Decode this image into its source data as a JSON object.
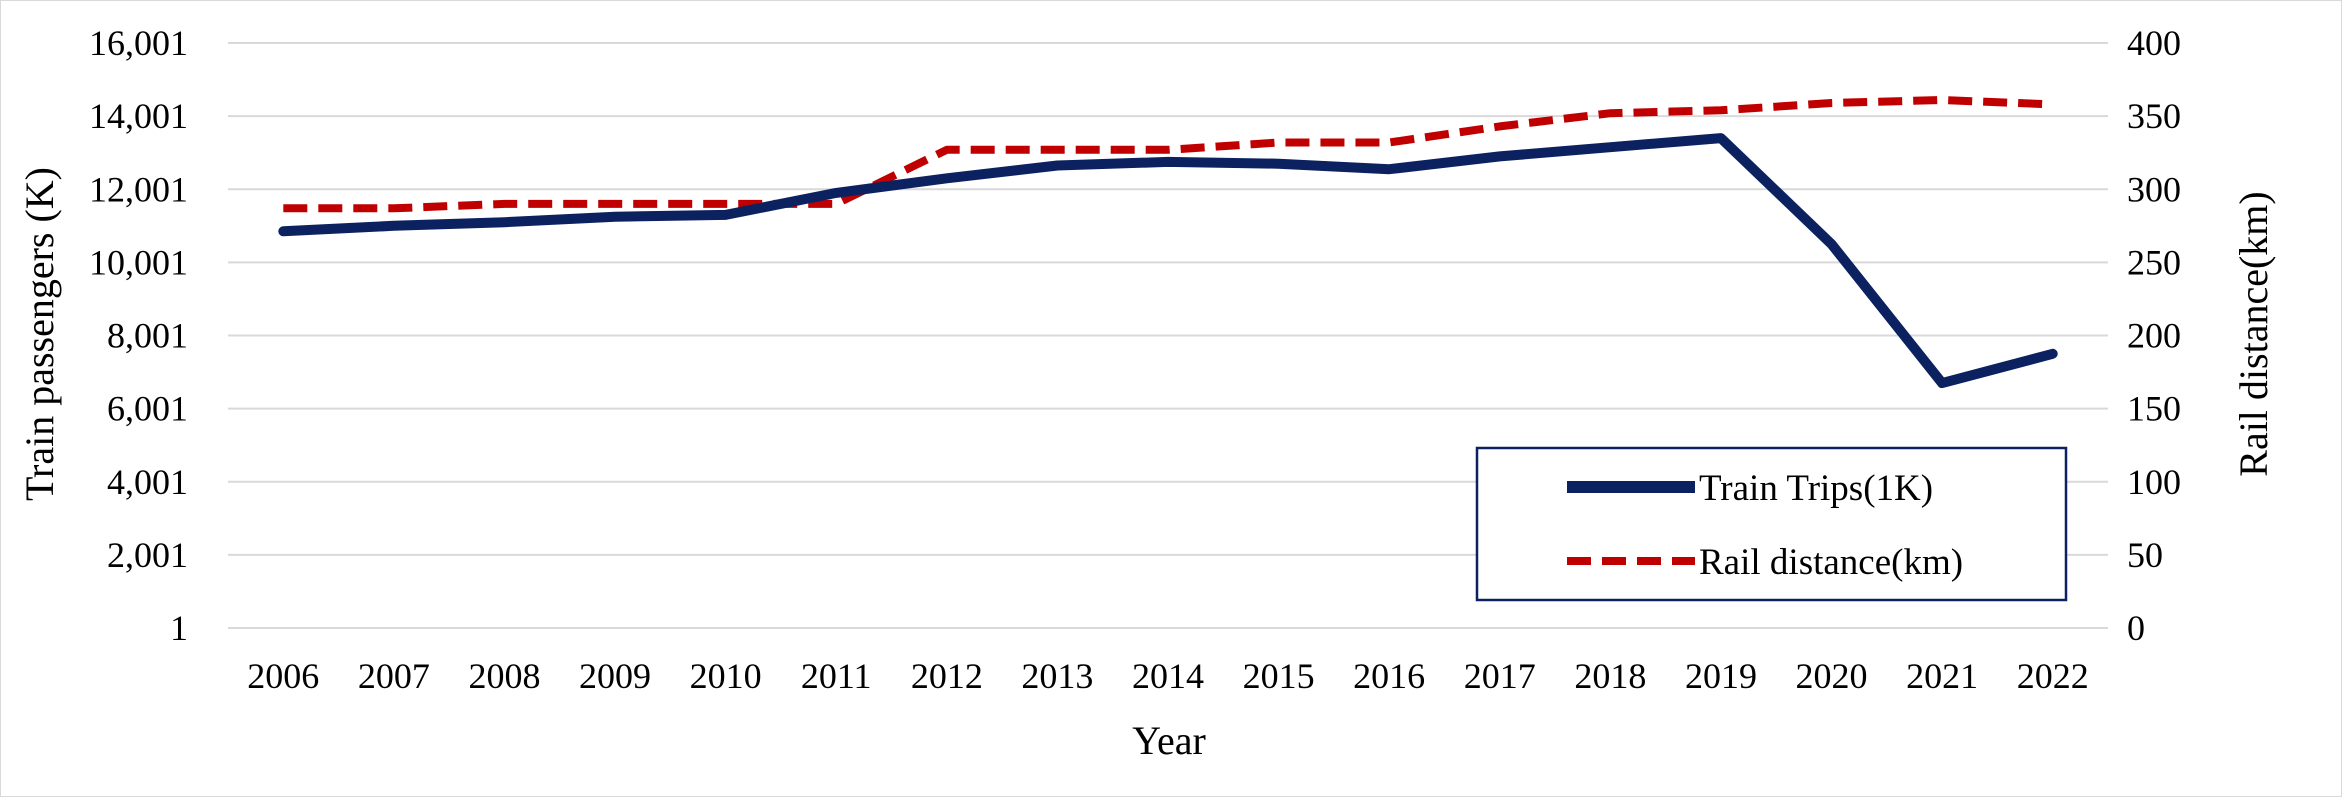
{
  "chart_data": {
    "type": "line",
    "xlabel": "Year",
    "ylabel_left": "Train passengers (K)",
    "ylabel_right": "Rail distance(km)",
    "categories": [
      "2006",
      "2007",
      "2008",
      "2009",
      "2010",
      "2011",
      "2012",
      "2013",
      "2014",
      "2015",
      "2016",
      "2017",
      "2018",
      "2019",
      "2020",
      "2021",
      "2022"
    ],
    "y_left": {
      "range": [
        1,
        16001
      ],
      "ticks": [
        "1",
        "2,001",
        "4,001",
        "6,001",
        "8,001",
        "10,001",
        "12,001",
        "14,001",
        "16,001"
      ]
    },
    "y_right": {
      "range": [
        0,
        400
      ],
      "ticks": [
        "0",
        "50",
        "100",
        "150",
        "200",
        "250",
        "300",
        "350",
        "400"
      ]
    },
    "grid": "horizontal",
    "legend_position": "bottom-right",
    "series": [
      {
        "name": "Train Trips(1K)",
        "axis": "left",
        "style": "solid",
        "color": "#0b2160",
        "values": [
          10850,
          11000,
          11100,
          11250,
          11300,
          11900,
          12300,
          12650,
          12750,
          12700,
          12550,
          12900,
          13150,
          13400,
          10500,
          6700,
          7500
        ]
      },
      {
        "name": "Rail distance(km)",
        "axis": "right",
        "style": "dashed",
        "color": "#c00000",
        "values": [
          287,
          287,
          290,
          290,
          290,
          290,
          327,
          327,
          327,
          332,
          332,
          343,
          352,
          354,
          359,
          361,
          358
        ]
      }
    ]
  }
}
